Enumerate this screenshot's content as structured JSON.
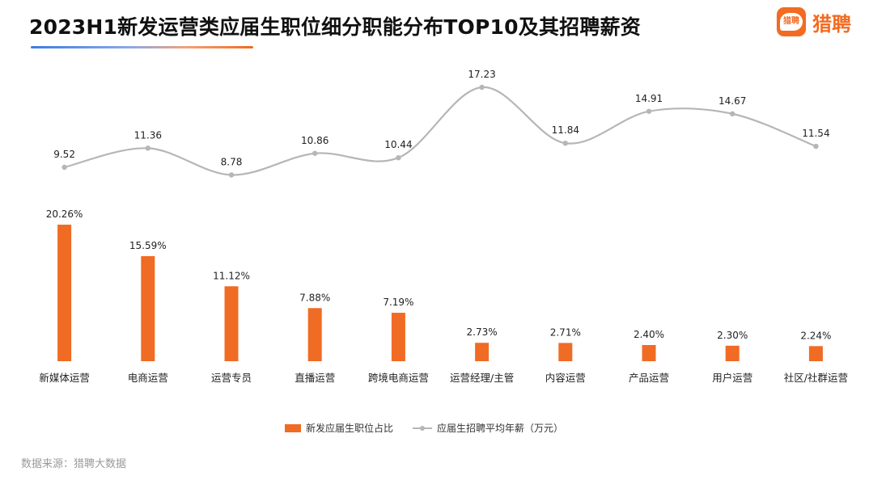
{
  "header": {
    "title": "2023H1新发运营类应届生职位细分职能分布TOP10及其招聘薪资",
    "logo_mark_text": "猎聘",
    "logo_text": "猎聘",
    "logo_icon": "liepin-logo-icon"
  },
  "colors": {
    "bar": "#f06b24",
    "line": "#b6b6b6",
    "accent": "#f26b21"
  },
  "chart_data": {
    "type": "bar",
    "title": "2023H1新发运营类应届生职位细分职能分布TOP10及其招聘薪资",
    "categories": [
      "新媒体运营",
      "电商运营",
      "运营专员",
      "直播运营",
      "跨境电商运营",
      "运营经理/主管",
      "内容运营",
      "产品运营",
      "用户运营",
      "社区/社群运营"
    ],
    "series": [
      {
        "name": "新发应届生职位占比",
        "type": "bar",
        "values": [
          20.26,
          15.59,
          11.12,
          7.88,
          7.19,
          2.73,
          2.71,
          2.4,
          2.3,
          2.24
        ],
        "labels": [
          "20.26%",
          "15.59%",
          "11.12%",
          "7.88%",
          "7.19%",
          "2.73%",
          "2.71%",
          "2.40%",
          "2.30%",
          "2.24%"
        ]
      },
      {
        "name": "应届生招聘平均年薪（万元）",
        "type": "line",
        "smooth": true,
        "values": [
          9.52,
          11.36,
          8.78,
          10.86,
          10.44,
          17.23,
          11.84,
          14.91,
          14.67,
          11.54
        ],
        "labels": [
          "9.52",
          "11.36",
          "8.78",
          "10.86",
          "10.44",
          "17.23",
          "11.84",
          "14.91",
          "14.67",
          "11.54"
        ]
      }
    ],
    "legend_position": "bottom",
    "grid": false
  },
  "legend": {
    "bar_label": "新发应届生职位占比",
    "line_label": "应届生招聘平均年薪（万元）"
  },
  "footer": {
    "source": "数据来源：猎聘大数据"
  }
}
